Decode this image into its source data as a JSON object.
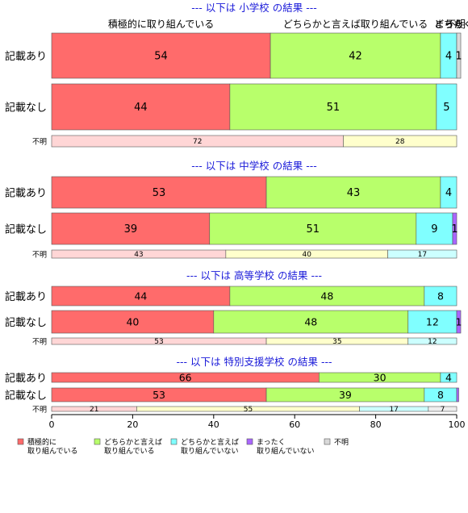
{
  "chart_data": {
    "type": "bar",
    "orientation": "horizontal",
    "stacked": true,
    "xlim": [
      0,
      100
    ],
    "xticks": [
      "0",
      "20",
      "40",
      "60",
      "80",
      "100"
    ],
    "categories": [
      "積極的に取り組んでいる",
      "どちらかと言えば取り組んでいる",
      "どちらかと言えば取り組んでいない",
      "まったく取り組んでいない",
      "不明"
    ],
    "colors": [
      "#ff6b6b",
      "#b8ff6b",
      "#80ffff",
      "#aa66ff",
      "#d9d9d9"
    ],
    "light_colors": [
      "#ffd6d6",
      "#ffffcc",
      "#ccffff",
      "#e5ccff",
      "#eeeeee"
    ],
    "top_labels": [
      {
        "text": "積極的に取り組んでいる",
        "at": 27
      },
      {
        "text": "どちらかと言えば取り組んでいる",
        "at": 75
      },
      {
        "text": "どちら",
        "at": 98
      },
      {
        "text": "まったく",
        "at": 99.3
      },
      {
        "text": "不明",
        "at": 99.8
      }
    ],
    "legend": [
      {
        "lines": [
          "積極的に",
          "取り組んでいる"
        ]
      },
      {
        "lines": [
          "どちらかと言えば",
          "取り組んでいる"
        ]
      },
      {
        "lines": [
          "どちらかと言えば",
          "取り組んでいない"
        ]
      },
      {
        "lines": [
          "まったく",
          "取り組んでいない"
        ]
      },
      {
        "lines": [
          "不明"
        ]
      }
    ],
    "sections": [
      {
        "title": "--- 以下は 小学校 の結果 ---",
        "rows": [
          {
            "label": "記載あり",
            "values": [
              54,
              42,
              4,
              0,
              1
            ],
            "labels": [
              "54",
              "42",
              "4",
              "",
              "1"
            ]
          },
          {
            "label": "記載なし",
            "values": [
              44,
              51,
              5,
              0,
              0
            ],
            "labels": [
              "44",
              "51",
              "5",
              "",
              ""
            ]
          }
        ],
        "unknown": {
          "label": "不明",
          "values": [
            72,
            28,
            0,
            0,
            0
          ],
          "labels": [
            "72",
            "28",
            "",
            "",
            ""
          ]
        }
      },
      {
        "title": "--- 以下は 中学校 の結果 ---",
        "rows": [
          {
            "label": "記載あり",
            "values": [
              53,
              43,
              4,
              0,
              0
            ],
            "labels": [
              "53",
              "43",
              "4",
              "",
              ""
            ]
          },
          {
            "label": "記載なし",
            "values": [
              39,
              51,
              9,
              1,
              0
            ],
            "labels": [
              "39",
              "51",
              "9",
              "1",
              ""
            ]
          }
        ],
        "unknown": {
          "label": "不明",
          "values": [
            43,
            40,
            17,
            0,
            0
          ],
          "labels": [
            "43",
            "40",
            "17",
            "",
            ""
          ]
        }
      },
      {
        "title": "--- 以下は 高等学校 の結果 ---",
        "rows": [
          {
            "label": "記載あり",
            "values": [
              44,
              48,
              8,
              0,
              0
            ],
            "labels": [
              "44",
              "48",
              "8",
              "",
              ""
            ]
          },
          {
            "label": "記載なし",
            "values": [
              40,
              48,
              12,
              1,
              0
            ],
            "labels": [
              "40",
              "48",
              "12",
              "1",
              ""
            ]
          }
        ],
        "unknown": {
          "label": "不明",
          "values": [
            53,
            35,
            12,
            0,
            0
          ],
          "labels": [
            "53",
            "35",
            "12",
            "",
            ""
          ]
        }
      },
      {
        "title": "--- 以下は 特別支援学校 の結果 ---",
        "rows": [
          {
            "label": "記載あり",
            "values": [
              66,
              30,
              4,
              0,
              0
            ],
            "labels": [
              "66",
              "30",
              "4",
              "",
              ""
            ]
          },
          {
            "label": "記載なし",
            "values": [
              53,
              39,
              8,
              0.5,
              0
            ],
            "labels": [
              "53",
              "39",
              "8",
              "",
              ""
            ]
          }
        ],
        "unknown": {
          "label": "不明",
          "values": [
            21,
            55,
            17,
            0,
            7
          ],
          "labels": [
            "21",
            "55",
            "17",
            "",
            "7"
          ]
        }
      }
    ]
  }
}
